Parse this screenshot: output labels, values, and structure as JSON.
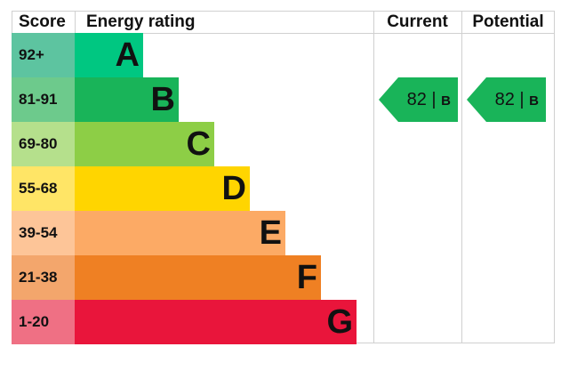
{
  "chart_data": {
    "type": "bar",
    "headers": {
      "score": "Score",
      "rating": "Energy rating",
      "current": "Current",
      "potential": "Potential"
    },
    "bands": [
      {
        "letter": "A",
        "range": "92+",
        "color": "#00c781",
        "score_color": "#5dc4a0"
      },
      {
        "letter": "B",
        "range": "81-91",
        "color": "#19b459",
        "score_color": "#6dca8c"
      },
      {
        "letter": "C",
        "range": "69-80",
        "color": "#8dce46",
        "score_color": "#b5e08c"
      },
      {
        "letter": "D",
        "range": "55-68",
        "color": "#ffd500",
        "score_color": "#ffe566"
      },
      {
        "letter": "E",
        "range": "39-54",
        "color": "#fcaa65",
        "score_color": "#fdc598"
      },
      {
        "letter": "F",
        "range": "21-38",
        "color": "#ef8023",
        "score_color": "#f3a66c"
      },
      {
        "letter": "G",
        "range": "1-20",
        "color": "#e9153b",
        "score_color": "#ef7084"
      }
    ],
    "current": {
      "value": 82,
      "band": "B",
      "label": "82 | ",
      "color": "#19b459"
    },
    "potential": {
      "value": 82,
      "band": "B",
      "label": "82 | ",
      "color": "#19b459"
    }
  }
}
